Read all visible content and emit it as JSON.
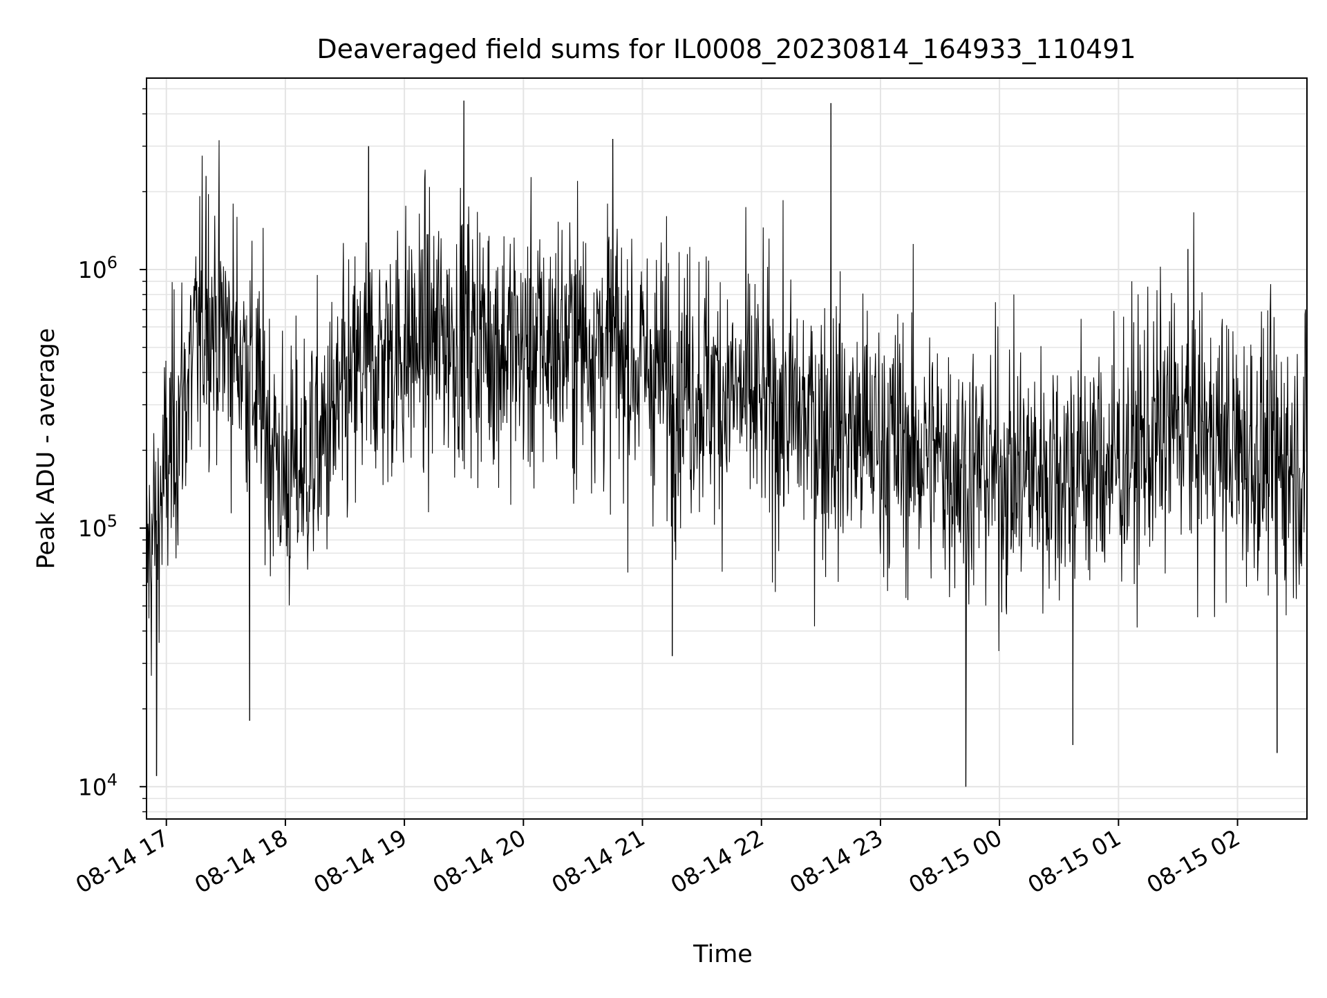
{
  "chart_data": {
    "type": "line",
    "title": "Deaveraged field sums for IL0008_20230814_164933_110491",
    "xlabel": "Time",
    "ylabel": "Peak ADU - average",
    "y_scale": "log",
    "grid": true,
    "x_range_hours": [
      "08-14 16:50",
      "08-15 02:35"
    ],
    "ylim": [
      7500,
      5500000
    ],
    "x_ticks": [
      "08-14 17",
      "08-14 18",
      "08-14 19",
      "08-14 20",
      "08-14 21",
      "08-14 22",
      "08-14 23",
      "08-15 00",
      "08-15 01",
      "08-15 02"
    ],
    "y_ticks": [
      {
        "base": "10",
        "exp": "4",
        "value": 10000
      },
      {
        "base": "10",
        "exp": "5",
        "value": 100000
      },
      {
        "base": "10",
        "exp": "6",
        "value": 1000000
      }
    ],
    "series": [
      {
        "color": "#000000",
        "trend": [
          {
            "time": "08-14 16:50",
            "value": 70000
          },
          {
            "time": "08-14 17:05",
            "value": 250000
          },
          {
            "time": "08-14 17:20",
            "value": 700000
          },
          {
            "time": "08-14 17:40",
            "value": 450000
          },
          {
            "time": "08-14 18:00",
            "value": 150000
          },
          {
            "time": "08-14 18:20",
            "value": 220000
          },
          {
            "time": "08-14 18:40",
            "value": 420000
          },
          {
            "time": "08-14 19:00",
            "value": 500000
          },
          {
            "time": "08-14 19:30",
            "value": 580000
          },
          {
            "time": "08-14 20:00",
            "value": 480000
          },
          {
            "time": "08-14 20:30",
            "value": 550000
          },
          {
            "time": "08-14 21:00",
            "value": 420000
          },
          {
            "time": "08-14 21:30",
            "value": 360000
          },
          {
            "time": "08-14 22:00",
            "value": 300000
          },
          {
            "time": "08-14 22:30",
            "value": 250000
          },
          {
            "time": "08-14 23:00",
            "value": 220000
          },
          {
            "time": "08-14 23:30",
            "value": 190000
          },
          {
            "time": "08-15 00:00",
            "value": 160000
          },
          {
            "time": "08-15 00:30",
            "value": 170000
          },
          {
            "time": "08-15 01:00",
            "value": 180000
          },
          {
            "time": "08-15 01:30",
            "value": 260000
          },
          {
            "time": "08-15 02:00",
            "value": 200000
          },
          {
            "time": "08-15 02:35",
            "value": 180000
          }
        ],
        "spikes": [
          {
            "time": "08-14 16:55",
            "value": 11000
          },
          {
            "time": "08-14 17:20",
            "value": 2300000
          },
          {
            "time": "08-14 17:42",
            "value": 18000
          },
          {
            "time": "08-14 18:42",
            "value": 3000000
          },
          {
            "time": "08-14 19:30",
            "value": 4500000
          },
          {
            "time": "08-14 20:45",
            "value": 3200000
          },
          {
            "time": "08-14 21:15",
            "value": 32000
          },
          {
            "time": "08-14 22:35",
            "value": 4400000
          },
          {
            "time": "08-14 23:43",
            "value": 10000
          },
          {
            "time": "08-15 00:37",
            "value": 14500
          },
          {
            "time": "08-15 01:35",
            "value": 1200000
          },
          {
            "time": "08-15 02:20",
            "value": 13500
          }
        ]
      }
    ]
  }
}
